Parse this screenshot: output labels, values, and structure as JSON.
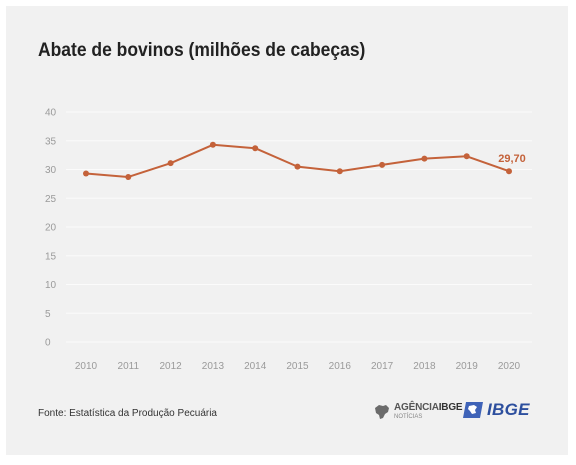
{
  "chart_data": {
    "type": "line",
    "title": "Abate de bovinos (milhões de cabeças)",
    "xlabel": "",
    "ylabel": "",
    "categories": [
      "2010",
      "2011",
      "2012",
      "2013",
      "2014",
      "2015",
      "2016",
      "2017",
      "2018",
      "2019",
      "2020"
    ],
    "series": [
      {
        "values": [
          29.3,
          28.7,
          31.1,
          34.3,
          33.7,
          30.5,
          29.7,
          30.8,
          31.9,
          32.3,
          29.7
        ]
      }
    ],
    "ylim": [
      0,
      40
    ],
    "yticks": [
      "0",
      "5",
      "10",
      "15",
      "20",
      "25",
      "30",
      "35",
      "40"
    ],
    "annotation": {
      "category": "2020",
      "label": "29,70"
    },
    "grid": true,
    "line_color": "#c4623a",
    "annotation_color": "#c4623a"
  },
  "footer": {
    "source": "Fonte: Estatística da Produção Pecuária",
    "agencia_line1_a": "AGÊNCIA",
    "agencia_line1_b": "IBGE",
    "agencia_line2": "NOTÍCIAS",
    "ibge": "IBGE"
  }
}
